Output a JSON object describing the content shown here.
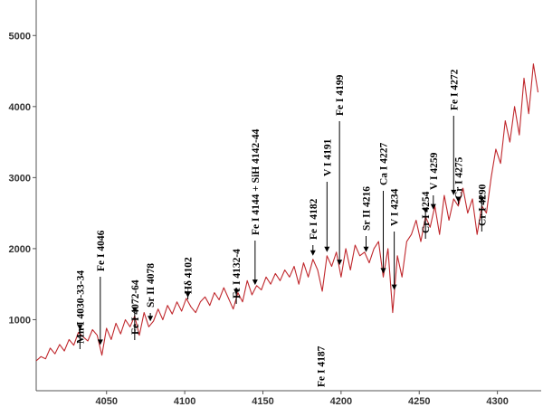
{
  "chart_data": {
    "type": "line",
    "title": "",
    "xlabel": "",
    "ylabel": "",
    "xlim": [
      4005,
      4328
    ],
    "ylim": [
      0,
      5500
    ],
    "x_ticks": [
      4050,
      4100,
      4150,
      4200,
      4250,
      4300
    ],
    "y_ticks": [
      1000,
      2000,
      3000,
      4000,
      5000
    ],
    "grid": false,
    "line_color": "#c0282d",
    "series": [
      {
        "name": "",
        "x": [
          4005,
          4008,
          4011,
          4014,
          4017,
          4020,
          4023,
          4026,
          4029,
          4032,
          4035,
          4038,
          4041,
          4044,
          4047,
          4050,
          4053,
          4056,
          4059,
          4062,
          4065,
          4068,
          4071,
          4074,
          4077,
          4080,
          4083,
          4086,
          4089,
          4092,
          4095,
          4098,
          4101,
          4104,
          4107,
          4110,
          4113,
          4116,
          4119,
          4122,
          4125,
          4128,
          4131,
          4134,
          4137,
          4140,
          4143,
          4146,
          4149,
          4152,
          4155,
          4158,
          4161,
          4164,
          4167,
          4170,
          4173,
          4176,
          4179,
          4182,
          4185,
          4188,
          4191,
          4194,
          4197,
          4200,
          4203,
          4206,
          4209,
          4212,
          4215,
          4218,
          4221,
          4224,
          4227,
          4230,
          4233,
          4236,
          4239,
          4242,
          4245,
          4248,
          4251,
          4254,
          4257,
          4260,
          4263,
          4266,
          4269,
          4272,
          4275,
          4278,
          4281,
          4284,
          4287,
          4290,
          4293,
          4296,
          4299,
          4302,
          4305,
          4308,
          4311,
          4314,
          4317,
          4320,
          4323,
          4326
        ],
        "y": [
          420,
          480,
          450,
          600,
          520,
          650,
          560,
          720,
          640,
          820,
          760,
          700,
          860,
          780,
          500,
          880,
          720,
          950,
          800,
          1000,
          900,
          1050,
          780,
          1100,
          900,
          980,
          1150,
          1000,
          1200,
          1080,
          1250,
          1120,
          1300,
          1180,
          1100,
          1250,
          1320,
          1200,
          1380,
          1280,
          1450,
          1300,
          1150,
          1380,
          1250,
          1550,
          1350,
          1480,
          1420,
          1600,
          1500,
          1650,
          1550,
          1700,
          1600,
          1750,
          1500,
          1800,
          1600,
          1850,
          1700,
          1400,
          1900,
          1750,
          1950,
          1600,
          2000,
          1700,
          2050,
          1900,
          1950,
          1800,
          2000,
          2100,
          1600,
          2000,
          1100,
          1900,
          1600,
          2100,
          2200,
          2400,
          2100,
          2450,
          2300,
          2600,
          2200,
          2750,
          2400,
          2700,
          2600,
          2850,
          2500,
          2700,
          2200,
          2600,
          2500,
          3000,
          3400,
          3200,
          3800,
          3500,
          4000,
          3600,
          4400,
          3900,
          4600,
          4200
        ]
      }
    ],
    "annotations": [
      {
        "label": "Mn I 4030-33-34",
        "x": 4033
      },
      {
        "label": "Fe I 4046",
        "x": 4046
      },
      {
        "label": "Fe I 4072-64",
        "x": 4068
      },
      {
        "label": "Sr II 4078",
        "x": 4078
      },
      {
        "label": "Hδ 4102",
        "x": 4102
      },
      {
        "label": "Fe I 4132-4",
        "x": 4133
      },
      {
        "label": "Fe I 4144 + SiH 4142-44",
        "x": 4145
      },
      {
        "label": "Fe I 4182",
        "x": 4182
      },
      {
        "label": "Fe I 4187",
        "x": 4187
      },
      {
        "label": "V I 4191",
        "x": 4191
      },
      {
        "label": "Fe I 4199",
        "x": 4199
      },
      {
        "label": "Sr II 4216",
        "x": 4216
      },
      {
        "label": "Ca I 4227",
        "x": 4227
      },
      {
        "label": "V I 4234",
        "x": 4234
      },
      {
        "label": "Cr I 4254",
        "x": 4254
      },
      {
        "label": "V I 4259",
        "x": 4259
      },
      {
        "label": "Fe I 4272",
        "x": 4272
      },
      {
        "label": "Cr I 4275",
        "x": 4275
      },
      {
        "label": "Cr I 4290",
        "x": 4290
      }
    ]
  }
}
